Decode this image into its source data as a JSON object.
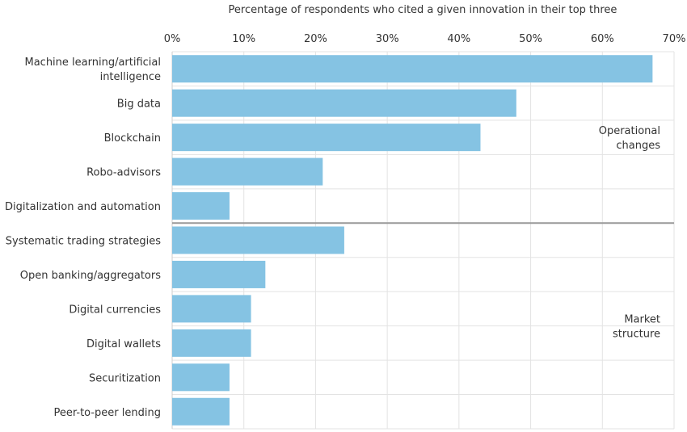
{
  "chart_data": {
    "type": "bar",
    "orientation": "horizontal",
    "xlabel": "Percentage of respondents who cited a given innovation in their top three",
    "xlim": [
      0,
      70
    ],
    "x_ticks": [
      "0%",
      "10%",
      "20%",
      "30%",
      "40%",
      "50%",
      "60%",
      "70%"
    ],
    "grid": true,
    "bar_color": "#85c3e3",
    "categories": [
      "Machine learning/artificial intelligence",
      "Big data",
      "Blockchain",
      "Robo-advisors",
      "Digitalization and automation",
      "Systematic trading strategies",
      "Open banking/aggregators",
      "Digital currencies",
      "Digital wallets",
      "Securitization",
      "Peer-to-peer lending"
    ],
    "values": [
      67,
      48,
      43,
      21,
      8,
      24,
      13,
      11,
      11,
      8,
      8
    ],
    "groups": [
      {
        "label": "Operational changes",
        "count": 5
      },
      {
        "label": "Market structure",
        "count": 6
      }
    ]
  }
}
